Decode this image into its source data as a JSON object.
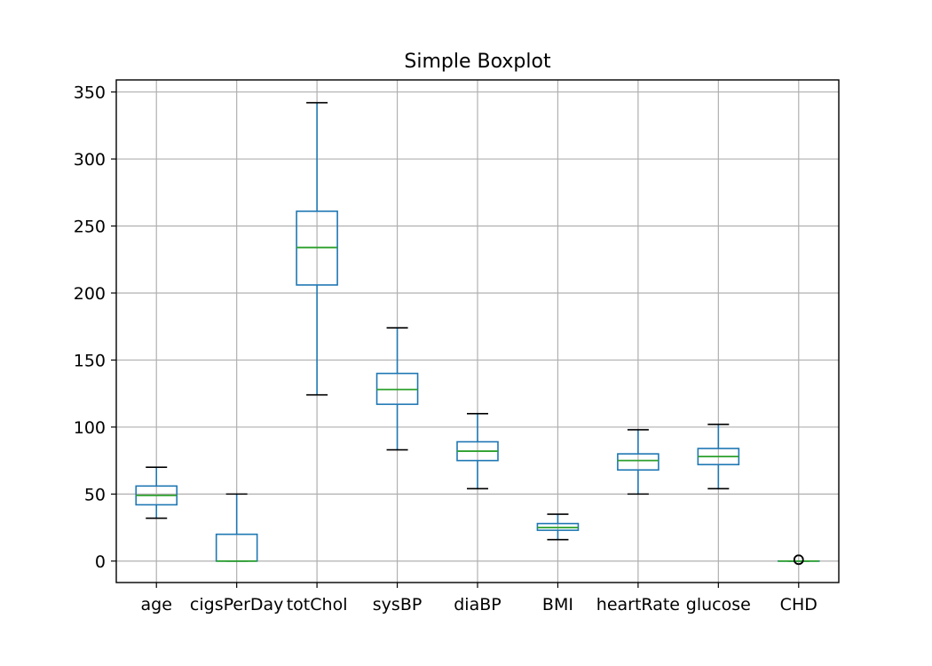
{
  "chart_data": {
    "type": "boxplot",
    "title": "Simple Boxplot",
    "xlabel": "",
    "ylabel": "",
    "ylim": [
      -16,
      359
    ],
    "yticks": [
      0,
      50,
      100,
      150,
      200,
      250,
      300,
      350
    ],
    "grid": true,
    "colors": {
      "box": "#1f77b4",
      "median": "#2ca02c",
      "cap": "#000000",
      "grid": "#b0b0b0"
    },
    "categories": [
      "age",
      "cigsPerDay",
      "totChol",
      "sysBP",
      "diaBP",
      "BMI",
      "heartRate",
      "glucose",
      "CHD"
    ],
    "boxes": [
      {
        "label": "age",
        "whislo": 32,
        "q1": 42,
        "med": 49,
        "q3": 56,
        "whishi": 70,
        "fliers": []
      },
      {
        "label": "cigsPerDay",
        "whislo": 0,
        "q1": 0,
        "med": 0,
        "q3": 20,
        "whishi": 50,
        "fliers": []
      },
      {
        "label": "totChol",
        "whislo": 124,
        "q1": 206,
        "med": 234,
        "q3": 261,
        "whishi": 342,
        "fliers": []
      },
      {
        "label": "sysBP",
        "whislo": 83,
        "q1": 117,
        "med": 128,
        "q3": 140,
        "whishi": 174,
        "fliers": []
      },
      {
        "label": "diaBP",
        "whislo": 54,
        "q1": 75,
        "med": 82,
        "q3": 89,
        "whishi": 110,
        "fliers": []
      },
      {
        "label": "BMI",
        "whislo": 16,
        "q1": 23,
        "med": 25,
        "q3": 28,
        "whishi": 35,
        "fliers": []
      },
      {
        "label": "heartRate",
        "whislo": 50,
        "q1": 68,
        "med": 75,
        "q3": 80,
        "whishi": 98,
        "fliers": []
      },
      {
        "label": "glucose",
        "whislo": 54,
        "q1": 72,
        "med": 78,
        "q3": 84,
        "whishi": 102,
        "fliers": []
      },
      {
        "label": "CHD",
        "whislo": 0,
        "q1": 0,
        "med": 0,
        "q3": 0,
        "whishi": 0,
        "fliers": [
          1,
          1,
          1
        ]
      }
    ]
  }
}
